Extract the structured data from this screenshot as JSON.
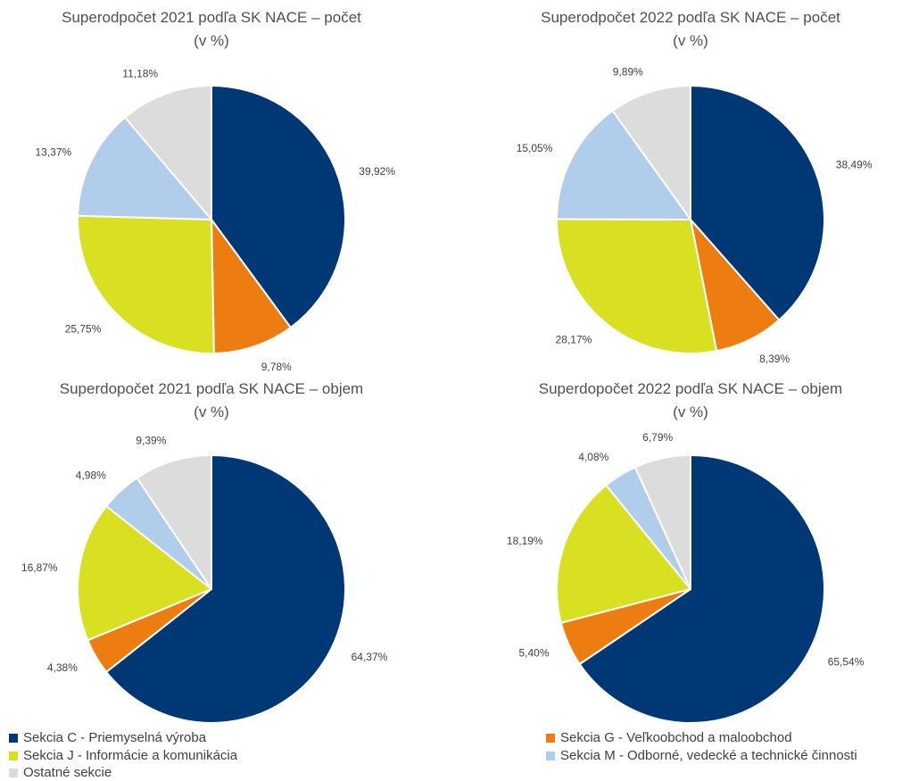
{
  "colors": {
    "sekcia_c": "#003876",
    "sekcia_g": "#ee7d11",
    "sekcia_j": "#d9e021",
    "sekcia_m": "#b0cdec",
    "ostatne": "#dcdcdc"
  },
  "legend": {
    "items": [
      {
        "key": "sekcia_c",
        "label": "Sekcia C - Priemyselná výroba"
      },
      {
        "key": "sekcia_g",
        "label": "Sekcia G - Veľkoobchod a maloobchod"
      },
      {
        "key": "sekcia_j",
        "label": "Sekcia J - Informácie a komunikácia"
      },
      {
        "key": "sekcia_m",
        "label": "Sekcia M - Odborné, vedecké a technické činnosti"
      },
      {
        "key": "ostatne",
        "label": "Ostatné sekcie"
      }
    ]
  },
  "chart_data": [
    {
      "type": "pie",
      "title": "Superodpočet 2021 podľa SK NACE – počet",
      "subtitle": "(v %)",
      "slices": [
        {
          "key": "sekcia_c",
          "value": 39.92,
          "label": "39,92%"
        },
        {
          "key": "sekcia_g",
          "value": 9.78,
          "label": "9,78%"
        },
        {
          "key": "sekcia_j",
          "value": 25.75,
          "label": "25,75%"
        },
        {
          "key": "sekcia_m",
          "value": 13.37,
          "label": "13,37%"
        },
        {
          "key": "ostatne",
          "value": 11.18,
          "label": "11,18%"
        }
      ]
    },
    {
      "type": "pie",
      "title": "Superodpočet 2022 podľa SK NACE – počet",
      "subtitle": "(v %)",
      "slices": [
        {
          "key": "sekcia_c",
          "value": 38.49,
          "label": "38,49%"
        },
        {
          "key": "sekcia_g",
          "value": 8.39,
          "label": "8,39%"
        },
        {
          "key": "sekcia_j",
          "value": 28.17,
          "label": "28,17%"
        },
        {
          "key": "sekcia_m",
          "value": 15.05,
          "label": "15,05%"
        },
        {
          "key": "ostatne",
          "value": 9.89,
          "label": "9,89%"
        }
      ]
    },
    {
      "type": "pie",
      "title": "Superdopočet 2021 podľa SK NACE – objem",
      "subtitle": "(v %)",
      "slices": [
        {
          "key": "sekcia_c",
          "value": 64.37,
          "label": "64,37%"
        },
        {
          "key": "sekcia_g",
          "value": 4.38,
          "label": "4,38%"
        },
        {
          "key": "sekcia_j",
          "value": 16.87,
          "label": "16,87%"
        },
        {
          "key": "sekcia_m",
          "value": 4.98,
          "label": "4,98%"
        },
        {
          "key": "ostatne",
          "value": 9.39,
          "label": "9,39%"
        }
      ]
    },
    {
      "type": "pie",
      "title": "Superdopočet 2022 podľa SK NACE – objem",
      "subtitle": "(v %)",
      "slices": [
        {
          "key": "sekcia_c",
          "value": 65.54,
          "label": "65,54%"
        },
        {
          "key": "sekcia_g",
          "value": 5.4,
          "label": "5,40%"
        },
        {
          "key": "sekcia_j",
          "value": 18.19,
          "label": "18,19%"
        },
        {
          "key": "sekcia_m",
          "value": 4.08,
          "label": "4,08%"
        },
        {
          "key": "ostatne",
          "value": 6.79,
          "label": "6,79%"
        }
      ]
    }
  ]
}
